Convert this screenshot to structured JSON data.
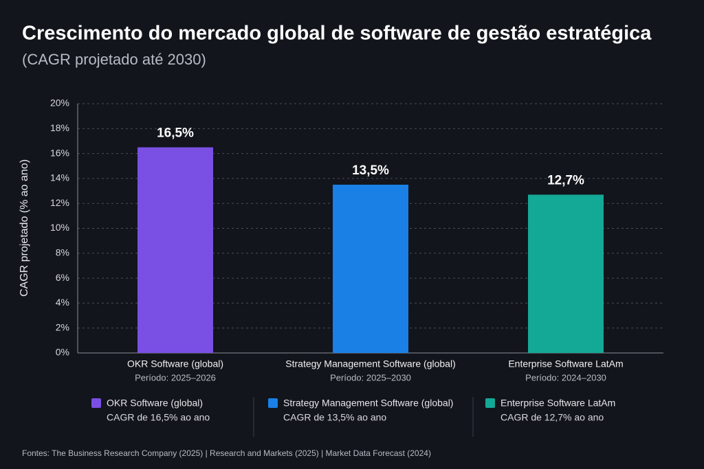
{
  "chart_data": {
    "type": "bar",
    "title": "Crescimento do mercado global de software de gestão estratégica",
    "subtitle": "(CAGR projetado até 2030)",
    "y_label": "CAGR projetado (% ao ano)",
    "categories": [
      "OKR Software (global)",
      "Strategy Management Software (global)",
      "Enterprise Software LatAm"
    ],
    "periods": [
      "Período: 2025–2026",
      "Período: 2025–2030",
      "Período: 2024–2030"
    ],
    "values": [
      16.5,
      13.5,
      12.7
    ],
    "value_labels": [
      "16,5%",
      "13,5%",
      "12,7%"
    ],
    "colors": [
      "#7a4fe3",
      "#1a80e6",
      "#14a896"
    ],
    "ylim": [
      0,
      20
    ],
    "yticks": [
      {
        "value": 0,
        "label": "0%"
      },
      {
        "value": 2,
        "label": "2%"
      },
      {
        "value": 4,
        "label": "4%"
      },
      {
        "value": 6,
        "label": "6%"
      },
      {
        "value": 8,
        "label": "8%"
      },
      {
        "value": 10,
        "label": "10%"
      },
      {
        "value": 12,
        "label": "12%"
      },
      {
        "value": 14,
        "label": "14%"
      },
      {
        "value": 16,
        "label": "16%"
      },
      {
        "value": 18,
        "label": "18%"
      },
      {
        "value": 20,
        "label": "20%"
      }
    ],
    "grid": true,
    "legend_notes": [
      "CAGR de 16,5% ao ano",
      "CAGR de 13,5% ao ano",
      "CAGR de 12,7% ao ano"
    ],
    "source": "Fontes: The Business Research Company (2025)  |  Research and Markets (2025)  |  Market Data Forecast (2024)"
  }
}
